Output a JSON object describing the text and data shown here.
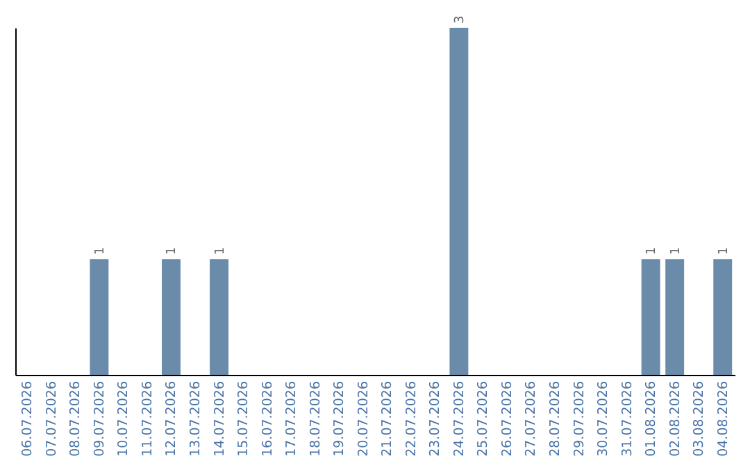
{
  "chart_data": {
    "type": "bar",
    "categories": [
      "06.07.2026",
      "07.07.2026",
      "08.07.2026",
      "09.07.2026",
      "10.07.2026",
      "11.07.2026",
      "12.07.2026",
      "13.07.2026",
      "14.07.2026",
      "15.07.2026",
      "16.07.2026",
      "17.07.2026",
      "18.07.2026",
      "19.07.2026",
      "20.07.2026",
      "21.07.2026",
      "22.07.2026",
      "23.07.2026",
      "24.07.2026",
      "25.07.2026",
      "26.07.2026",
      "27.07.2026",
      "28.07.2026",
      "29.07.2026",
      "30.07.2026",
      "31.07.2026",
      "01.08.2026",
      "02.08.2026",
      "03.08.2026",
      "04.08.2026"
    ],
    "values": [
      0,
      0,
      0,
      1,
      0,
      0,
      1,
      0,
      1,
      0,
      0,
      0,
      0,
      0,
      0,
      0,
      0,
      0,
      3,
      0,
      0,
      0,
      0,
      0,
      0,
      0,
      1,
      1,
      0,
      1
    ],
    "value_labels": [
      null,
      null,
      null,
      "1",
      null,
      null,
      "1",
      null,
      "1",
      null,
      null,
      null,
      null,
      null,
      null,
      null,
      null,
      null,
      "3",
      null,
      null,
      null,
      null,
      null,
      null,
      null,
      "1",
      "1",
      null,
      "1"
    ],
    "color": "#6b8bab",
    "tick_labels": "x"
  }
}
